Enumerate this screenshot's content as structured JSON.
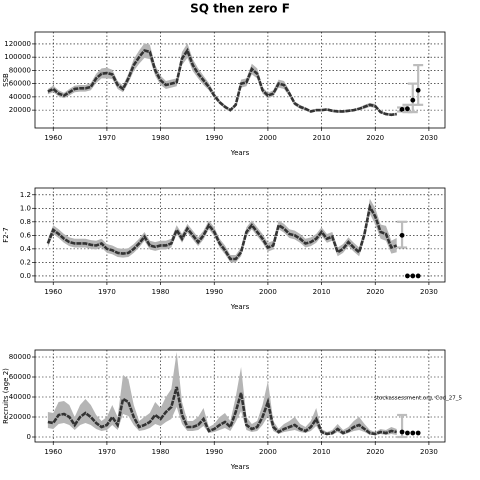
{
  "title": "SQ then zero F",
  "chart_data": [
    {
      "type": "line",
      "ylabel": "SSB",
      "xlabel": "Years",
      "x": [
        1959,
        1960,
        1961,
        1962,
        1963,
        1964,
        1965,
        1966,
        1967,
        1968,
        1969,
        1970,
        1971,
        1972,
        1973,
        1974,
        1975,
        1976,
        1977,
        1978,
        1979,
        1980,
        1981,
        1982,
        1983,
        1984,
        1985,
        1986,
        1987,
        1988,
        1989,
        1990,
        1991,
        1992,
        1993,
        1994,
        1995,
        1996,
        1997,
        1998,
        1999,
        2000,
        2001,
        2002,
        2003,
        2004,
        2005,
        2006,
        2007,
        2008,
        2009,
        2010,
        2011,
        2012,
        2013,
        2014,
        2015,
        2016,
        2017,
        2018,
        2019,
        2020,
        2021,
        2022,
        2023,
        2024
      ],
      "values": [
        48000,
        52000,
        45000,
        42000,
        47000,
        52000,
        53000,
        53000,
        55000,
        68000,
        75000,
        76000,
        74000,
        58000,
        52000,
        68000,
        88000,
        100000,
        110000,
        108000,
        80000,
        65000,
        58000,
        60000,
        62000,
        98000,
        110000,
        88000,
        75000,
        65000,
        55000,
        42000,
        32000,
        25000,
        20000,
        28000,
        60000,
        62000,
        82000,
        75000,
        50000,
        42000,
        45000,
        60000,
        58000,
        45000,
        30000,
        25000,
        22000,
        18000,
        20000,
        20000,
        21000,
        19000,
        18000,
        18000,
        19000,
        20000,
        22000,
        25000,
        28000,
        26000,
        17000,
        14000,
        13000,
        14000
      ],
      "lower": [
        44000,
        47000,
        41000,
        38000,
        42000,
        47000,
        48000,
        48000,
        50000,
        61000,
        68000,
        68000,
        67000,
        52000,
        47000,
        61000,
        79000,
        90000,
        99000,
        97000,
        72000,
        58000,
        52000,
        54000,
        56000,
        88000,
        99000,
        79000,
        68000,
        58000,
        50000,
        38000,
        29000,
        22000,
        18000,
        25000,
        54000,
        56000,
        74000,
        68000,
        45000,
        38000,
        41000,
        54000,
        52000,
        41000,
        27000,
        22000,
        20000,
        16000,
        18000,
        18000,
        19000,
        17000,
        16000,
        16000,
        17000,
        18000,
        20000,
        22000,
        25000,
        23000,
        15000,
        12000,
        11000,
        12000
      ],
      "upper": [
        52000,
        57000,
        50000,
        46000,
        52000,
        57000,
        58000,
        58000,
        61000,
        75000,
        83000,
        84000,
        81000,
        64000,
        57000,
        75000,
        97000,
        110000,
        121000,
        119000,
        88000,
        72000,
        64000,
        66000,
        68000,
        108000,
        121000,
        97000,
        83000,
        72000,
        61000,
        46000,
        35000,
        28000,
        22000,
        31000,
        66000,
        68000,
        90000,
        83000,
        55000,
        46000,
        50000,
        66000,
        64000,
        50000,
        33000,
        28000,
        24000,
        20000,
        22000,
        22000,
        23000,
        21000,
        20000,
        20000,
        21000,
        22000,
        24000,
        28000,
        31000,
        29000,
        19000,
        16000,
        15000,
        16000
      ],
      "forecast": {
        "x": [
          2025,
          2026,
          2027,
          2028
        ],
        "values": [
          21000,
          22000,
          35000,
          50000
        ],
        "lower": [
          18000,
          17000,
          17000,
          28000
        ],
        "upper": [
          24000,
          28000,
          60000,
          88000
        ]
      },
      "color": "#333333",
      "band_color": "#b5b5b5",
      "error_color": "#bdbdbd",
      "xlim": [
        1956.6,
        2033
      ],
      "xticks": [
        1960,
        1970,
        1980,
        1990,
        2000,
        2010,
        2020,
        2030
      ],
      "ylim": [
        -7000,
        138000
      ],
      "yticks": [
        20000,
        40000,
        60000,
        80000,
        100000,
        120000
      ],
      "grid": true
    },
    {
      "type": "line",
      "ylabel": "F2-7",
      "xlabel": "Years",
      "x": [
        1959,
        1960,
        1961,
        1962,
        1963,
        1964,
        1965,
        1966,
        1967,
        1968,
        1969,
        1970,
        1971,
        1972,
        1973,
        1974,
        1975,
        1976,
        1977,
        1978,
        1979,
        1980,
        1981,
        1982,
        1983,
        1984,
        1985,
        1986,
        1987,
        1988,
        1989,
        1990,
        1991,
        1992,
        1993,
        1994,
        1995,
        1996,
        1997,
        1998,
        1999,
        2000,
        2001,
        2002,
        2003,
        2004,
        2005,
        2006,
        2007,
        2008,
        2009,
        2010,
        2011,
        2012,
        2013,
        2014,
        2015,
        2016,
        2017,
        2018,
        2019,
        2020,
        2021,
        2022,
        2023,
        2024
      ],
      "values": [
        0.48,
        0.68,
        0.62,
        0.55,
        0.5,
        0.48,
        0.48,
        0.48,
        0.46,
        0.45,
        0.48,
        0.4,
        0.38,
        0.34,
        0.33,
        0.34,
        0.4,
        0.48,
        0.58,
        0.45,
        0.43,
        0.45,
        0.45,
        0.48,
        0.68,
        0.55,
        0.7,
        0.6,
        0.5,
        0.6,
        0.75,
        0.65,
        0.48,
        0.38,
        0.25,
        0.25,
        0.35,
        0.65,
        0.75,
        0.65,
        0.55,
        0.42,
        0.45,
        0.75,
        0.7,
        0.62,
        0.6,
        0.55,
        0.48,
        0.5,
        0.55,
        0.65,
        0.55,
        0.58,
        0.35,
        0.4,
        0.5,
        0.42,
        0.35,
        0.62,
        1.02,
        0.88,
        0.65,
        0.62,
        0.42,
        0.45
      ],
      "lower": [
        0.42,
        0.62,
        0.56,
        0.49,
        0.44,
        0.42,
        0.42,
        0.42,
        0.4,
        0.39,
        0.42,
        0.34,
        0.32,
        0.28,
        0.27,
        0.28,
        0.34,
        0.42,
        0.52,
        0.39,
        0.37,
        0.39,
        0.39,
        0.42,
        0.62,
        0.49,
        0.64,
        0.54,
        0.44,
        0.54,
        0.69,
        0.59,
        0.42,
        0.32,
        0.2,
        0.2,
        0.29,
        0.59,
        0.69,
        0.59,
        0.49,
        0.36,
        0.39,
        0.69,
        0.64,
        0.56,
        0.54,
        0.49,
        0.42,
        0.44,
        0.49,
        0.59,
        0.49,
        0.52,
        0.29,
        0.34,
        0.44,
        0.36,
        0.29,
        0.55,
        0.92,
        0.76,
        0.55,
        0.52,
        0.33,
        0.35
      ],
      "upper": [
        0.55,
        0.75,
        0.69,
        0.62,
        0.57,
        0.55,
        0.55,
        0.55,
        0.53,
        0.52,
        0.55,
        0.47,
        0.45,
        0.41,
        0.4,
        0.41,
        0.47,
        0.55,
        0.65,
        0.52,
        0.5,
        0.52,
        0.52,
        0.55,
        0.75,
        0.62,
        0.77,
        0.67,
        0.57,
        0.67,
        0.82,
        0.72,
        0.55,
        0.45,
        0.31,
        0.31,
        0.42,
        0.72,
        0.82,
        0.72,
        0.62,
        0.49,
        0.52,
        0.82,
        0.77,
        0.69,
        0.67,
        0.62,
        0.55,
        0.57,
        0.62,
        0.72,
        0.62,
        0.65,
        0.42,
        0.47,
        0.57,
        0.49,
        0.42,
        0.7,
        1.14,
        1.0,
        0.76,
        0.74,
        0.52,
        0.56
      ],
      "forecast": {
        "x": [
          2025,
          2026,
          2027,
          2028
        ],
        "values": [
          0.6,
          0,
          0,
          0
        ],
        "lower": [
          0.42,
          null,
          null,
          null
        ],
        "upper": [
          0.8,
          null,
          null,
          null
        ]
      },
      "color": "#333333",
      "band_color": "#b5b5b5",
      "error_color": "#bdbdbd",
      "xlim": [
        1956.6,
        2033
      ],
      "xticks": [
        1960,
        1970,
        1980,
        1990,
        2000,
        2010,
        2020,
        2030
      ],
      "ylim": [
        -0.09,
        1.3
      ],
      "yticks": [
        {
          "value": 0,
          "label": "0.0"
        },
        {
          "value": 0.2,
          "label": "0.2"
        },
        {
          "value": 0.4,
          "label": "0.4"
        },
        {
          "value": 0.6,
          "label": "0.6"
        },
        {
          "value": 0.8,
          "label": "0.8"
        },
        {
          "value": 1,
          "label": "1.0"
        },
        {
          "value": 1.2,
          "label": "1.2"
        }
      ],
      "grid": true
    },
    {
      "type": "line",
      "ylabel": "Recruits (age 2)",
      "xlabel": "Years",
      "annotation": "stockassessment.org, Cod_27_5",
      "x": [
        1959,
        1960,
        1961,
        1962,
        1963,
        1964,
        1965,
        1966,
        1967,
        1968,
        1969,
        1970,
        1971,
        1972,
        1973,
        1974,
        1975,
        1976,
        1977,
        1978,
        1979,
        1980,
        1981,
        1982,
        1983,
        1984,
        1985,
        1986,
        1987,
        1988,
        1989,
        1990,
        1991,
        1992,
        1993,
        1994,
        1995,
        1996,
        1997,
        1998,
        1999,
        2000,
        2001,
        2002,
        2003,
        2004,
        2005,
        2006,
        2007,
        2008,
        2009,
        2010,
        2011,
        2012,
        2013,
        2014,
        2015,
        2016,
        2017,
        2018,
        2019,
        2020,
        2021,
        2022,
        2023,
        2024
      ],
      "values": [
        15000,
        14000,
        22000,
        23000,
        20000,
        12000,
        20000,
        24000,
        20000,
        14000,
        10000,
        12000,
        20000,
        12000,
        38000,
        35000,
        20000,
        10000,
        12000,
        15000,
        22000,
        18000,
        25000,
        30000,
        50000,
        22000,
        10000,
        10000,
        12000,
        18000,
        6000,
        8000,
        12000,
        15000,
        10000,
        25000,
        44000,
        12000,
        8000,
        10000,
        20000,
        35000,
        10000,
        5000,
        8000,
        10000,
        12000,
        8000,
        6000,
        10000,
        18000,
        5000,
        3000,
        4000,
        8000,
        4000,
        6000,
        10000,
        12000,
        8000,
        4000,
        3000,
        5000,
        4000,
        6000,
        5000
      ],
      "lower": [
        9000,
        8000,
        13000,
        14000,
        12000,
        7000,
        12000,
        14000,
        12000,
        8000,
        6000,
        7000,
        12000,
        7000,
        23000,
        21000,
        12000,
        6000,
        7000,
        9000,
        13000,
        11000,
        15000,
        18000,
        30000,
        13000,
        6000,
        6000,
        7000,
        11000,
        4000,
        5000,
        7000,
        9000,
        6000,
        15000,
        26000,
        7000,
        5000,
        6000,
        12000,
        21000,
        6000,
        3000,
        5000,
        6000,
        7000,
        5000,
        4000,
        6000,
        11000,
        3000,
        2000,
        2000,
        5000,
        2000,
        4000,
        6000,
        7000,
        5000,
        2000,
        2000,
        3000,
        2000,
        3000,
        2000
      ],
      "upper": [
        25000,
        24000,
        35000,
        36000,
        32000,
        20000,
        32000,
        38000,
        32000,
        22000,
        16000,
        20000,
        32000,
        20000,
        62000,
        58000,
        32000,
        16000,
        20000,
        24000,
        35000,
        29000,
        40000,
        48000,
        85000,
        35000,
        16000,
        16000,
        20000,
        29000,
        10000,
        13000,
        20000,
        24000,
        16000,
        40000,
        70000,
        20000,
        13000,
        16000,
        32000,
        56000,
        16000,
        8000,
        13000,
        16000,
        20000,
        13000,
        10000,
        16000,
        29000,
        8000,
        5000,
        7000,
        13000,
        7000,
        10000,
        16000,
        20000,
        13000,
        7000,
        5000,
        8000,
        7000,
        10000,
        8000
      ],
      "forecast": {
        "x": [
          2025,
          2026,
          2027,
          2028
        ],
        "values": [
          5000,
          4000,
          4000,
          4000
        ],
        "lower": [
          0,
          null,
          null,
          null
        ],
        "upper": [
          22000,
          null,
          null,
          null
        ]
      },
      "color": "#333333",
      "band_color": "#b5b5b5",
      "error_color": "#bdbdbd",
      "xlim": [
        1956.6,
        2033
      ],
      "xticks": [
        1960,
        1970,
        1980,
        1990,
        2000,
        2010,
        2020,
        2030
      ],
      "ylim": [
        -5000,
        87000
      ],
      "yticks": [
        0,
        20000,
        40000,
        60000,
        80000
      ],
      "grid": true
    }
  ]
}
